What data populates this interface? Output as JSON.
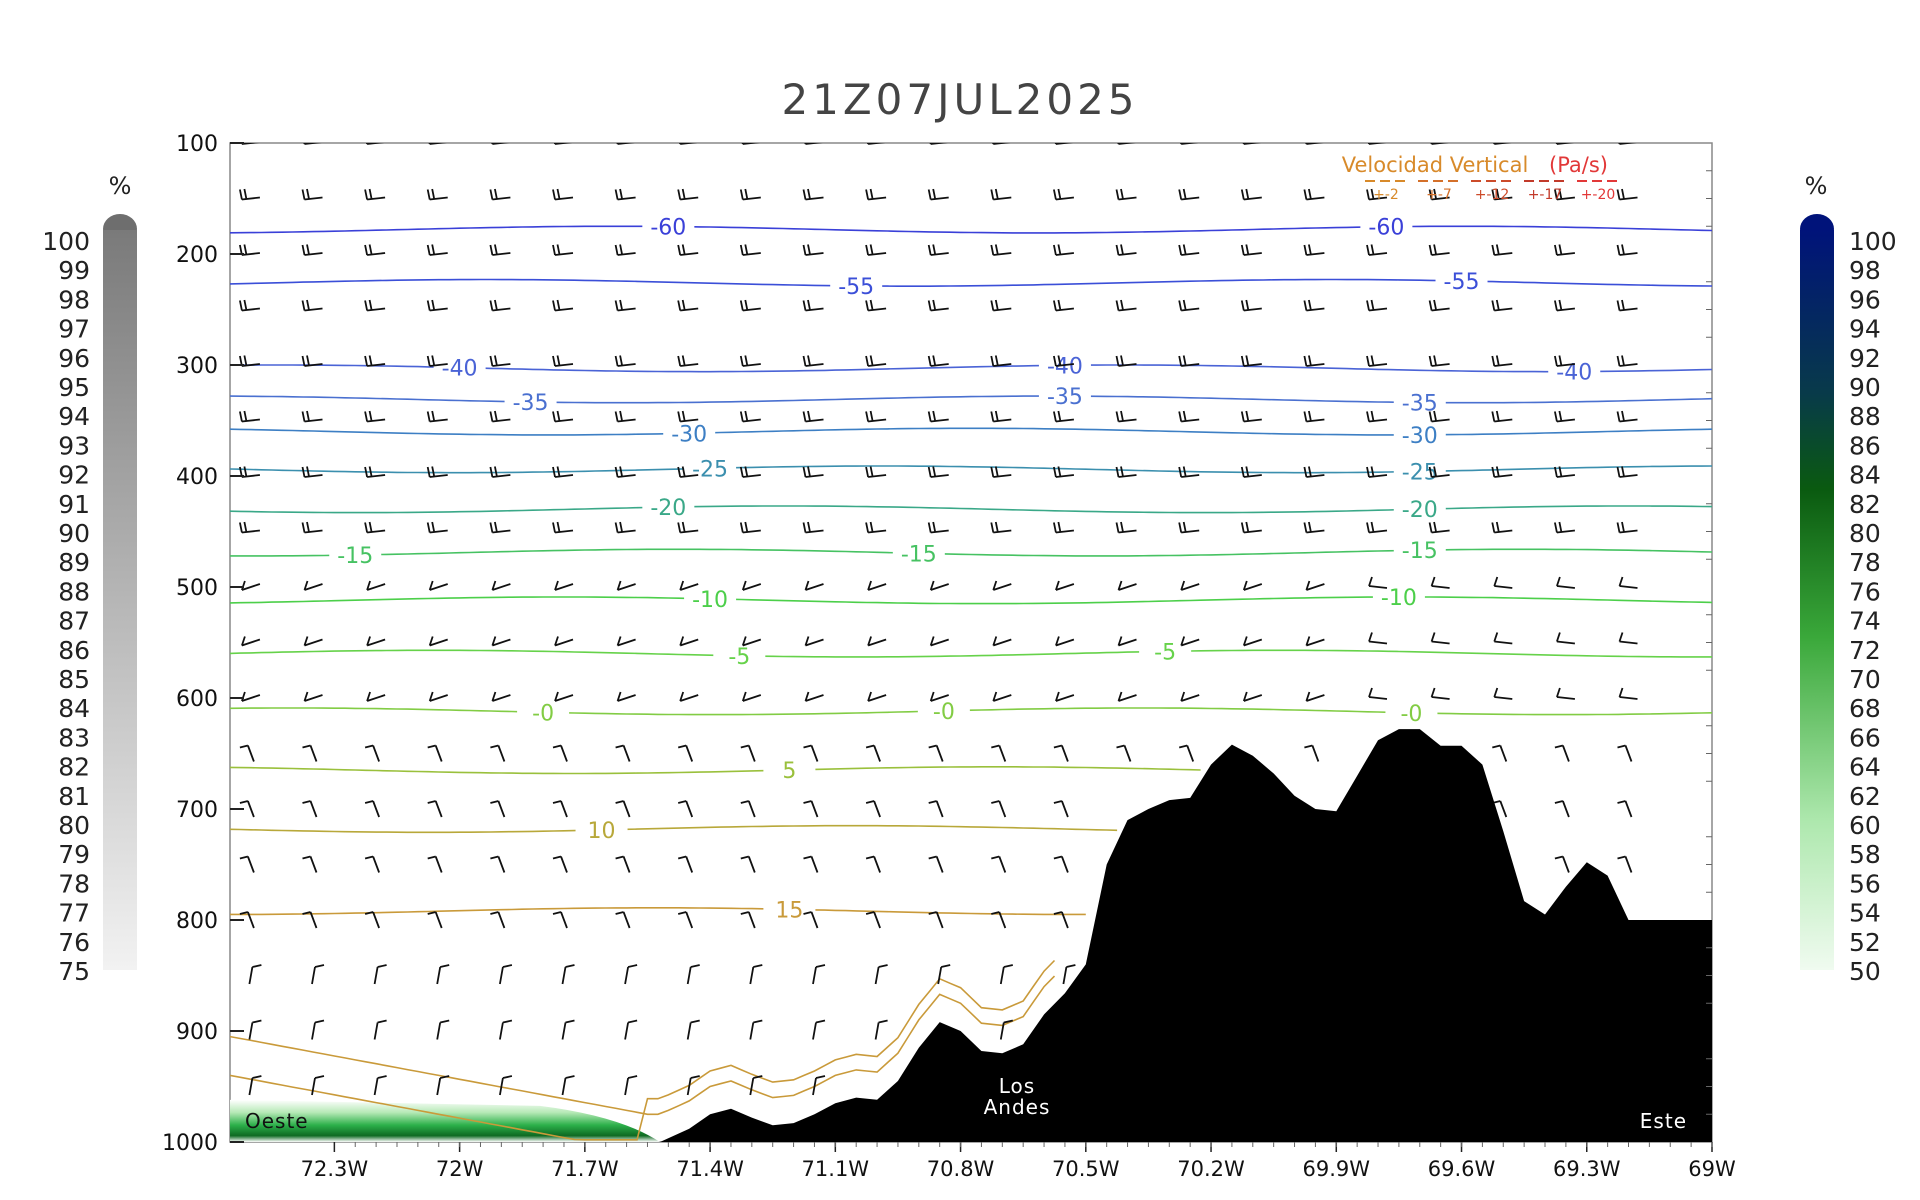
{
  "title": "21Z07JUL2025",
  "left_scale": {
    "unit": "%",
    "labels": [
      "100",
      "99",
      "98",
      "97",
      "96",
      "95",
      "94",
      "93",
      "92",
      "91",
      "90",
      "89",
      "88",
      "87",
      "86",
      "85",
      "84",
      "83",
      "82",
      "81",
      "80",
      "79",
      "78",
      "77",
      "76",
      "75"
    ]
  },
  "right_scale": {
    "unit": "%",
    "labels": [
      "100",
      "98",
      "96",
      "94",
      "92",
      "90",
      "88",
      "86",
      "84",
      "82",
      "80",
      "78",
      "76",
      "74",
      "72",
      "70",
      "68",
      "66",
      "64",
      "62",
      "60",
      "58",
      "56",
      "54",
      "52",
      "50"
    ]
  },
  "vv_legend": {
    "title_a": "Velocidad Vertical",
    "title_b": "(Pa/s)",
    "items": [
      {
        "label": "+-2",
        "color": "#d88a2a"
      },
      {
        "label": "+-7",
        "color": "#d4702a"
      },
      {
        "label": "+-12",
        "color": "#cc4b2a"
      },
      {
        "label": "+-17",
        "color": "#c23a2a"
      },
      {
        "label": "+-20",
        "color": "#e23838"
      }
    ]
  },
  "annotations": {
    "west": "Oeste",
    "east": "Este",
    "andes_1": "Los",
    "andes_2": "Andes"
  },
  "chart_data": {
    "type": "cross-section",
    "x": {
      "ticks": [
        "72.3W",
        "72W",
        "71.7W",
        "71.4W",
        "71.1W",
        "70.8W",
        "70.5W",
        "70.2W",
        "69.9W",
        "69.6W",
        "69.3W",
        "69W"
      ],
      "tick_values": [
        -72.3,
        -72.0,
        -71.7,
        -71.4,
        -71.1,
        -70.8,
        -70.5,
        -70.2,
        -69.9,
        -69.6,
        -69.3,
        -69.0
      ],
      "range": [
        -72.55,
        -69.0
      ]
    },
    "y": {
      "ticks": [
        "100",
        "200",
        "300",
        "400",
        "500",
        "600",
        "700",
        "800",
        "900",
        "1000"
      ],
      "tick_values": [
        100,
        200,
        300,
        400,
        500,
        600,
        700,
        800,
        900,
        1000
      ],
      "range": [
        100,
        1000
      ],
      "inverted": true
    },
    "temperature_contours": [
      {
        "label": "-60",
        "p": 178,
        "color": "#3a40d8",
        "label_lons": [
          -71.5,
          -69.78
        ]
      },
      {
        "label": "-55",
        "p": 226,
        "color": "#3b4fd8",
        "label_lons": [
          -71.05,
          -69.6
        ]
      },
      {
        "label": "-40",
        "p": 303,
        "color": "#4a63d6",
        "label_lons": [
          -72.0,
          -70.55,
          -69.33
        ]
      },
      {
        "label": "-35",
        "p": 331,
        "color": "#4a70d0",
        "label_lons": [
          -71.83,
          -70.55,
          -69.7
        ]
      },
      {
        "label": "-30",
        "p": 360,
        "color": "#3d7fc4",
        "label_lons": [
          -71.45,
          -69.7
        ]
      },
      {
        "label": "-25",
        "p": 394,
        "color": "#3b8fae",
        "label_lons": [
          -71.4,
          -69.7
        ]
      },
      {
        "label": "-20",
        "p": 430,
        "color": "#3aa888",
        "label_lons": [
          -71.5,
          -69.7
        ]
      },
      {
        "label": "-15",
        "p": 469,
        "color": "#46c262",
        "label_lons": [
          -72.25,
          -70.9,
          -69.7
        ]
      },
      {
        "label": "-10",
        "p": 512,
        "color": "#4ccf4a",
        "label_lons": [
          -71.4,
          -69.75
        ]
      },
      {
        "label": "-5",
        "p": 560,
        "color": "#66d24a",
        "label_lons": [
          -71.33,
          -70.31
        ]
      },
      {
        "label": "-0",
        "p": 612,
        "color": "#82cc44",
        "label_lons": [
          -71.8,
          -70.84,
          -69.72
        ]
      },
      {
        "label": "5",
        "p": 665,
        "color": "#9ac03c",
        "label_lons": [
          -71.21
        ]
      },
      {
        "label": "10",
        "p": 718,
        "color": "#b8a83a",
        "label_lons": [
          -71.66
        ]
      },
      {
        "label": "15",
        "p": 792,
        "color": "#c99a3a",
        "label_lons": [
          -71.21
        ]
      }
    ],
    "terrain": {
      "lons": [
        -72.55,
        -71.52,
        -71.45,
        -71.4,
        -71.35,
        -71.3,
        -71.25,
        -71.2,
        -71.15,
        -71.1,
        -71.05,
        -71.0,
        -70.95,
        -70.9,
        -70.85,
        -70.8,
        -70.75,
        -70.7,
        -70.65,
        -70.6,
        -70.55,
        -70.5,
        -70.45,
        -70.4,
        -70.35,
        -70.3,
        -70.25,
        -70.2,
        -70.15,
        -70.1,
        -70.05,
        -70.0,
        -69.95,
        -69.9,
        -69.85,
        -69.8,
        -69.75,
        -69.7,
        -69.65,
        -69.6,
        -69.55,
        -69.5,
        -69.45,
        -69.4,
        -69.35,
        -69.3,
        -69.25,
        -69.2,
        -69.15,
        -69.1,
        -69.05,
        -69.0
      ],
      "pressure_hpa": [
        1000,
        1000,
        988,
        975,
        970,
        978,
        985,
        983,
        975,
        965,
        960,
        962,
        945,
        915,
        892,
        900,
        918,
        920,
        912,
        885,
        866,
        840,
        750,
        710,
        700,
        692,
        690,
        660,
        642,
        652,
        668,
        688,
        700,
        702,
        670,
        638,
        628,
        628,
        643,
        643,
        660,
        720,
        783,
        795,
        770,
        748,
        760,
        800,
        800,
        800,
        800,
        800
      ],
      "labels": [
        "Los Andes"
      ]
    },
    "humidity_fill": {
      "region_lons": [
        -72.55,
        -71.52
      ],
      "top_hpa": 962,
      "max_pct": 70
    },
    "wind_barbs": "pressure levels 100-1000 hPa every 50 hPa, columns every 0.15 deg; westerly flow aloft, southerly near surface"
  }
}
